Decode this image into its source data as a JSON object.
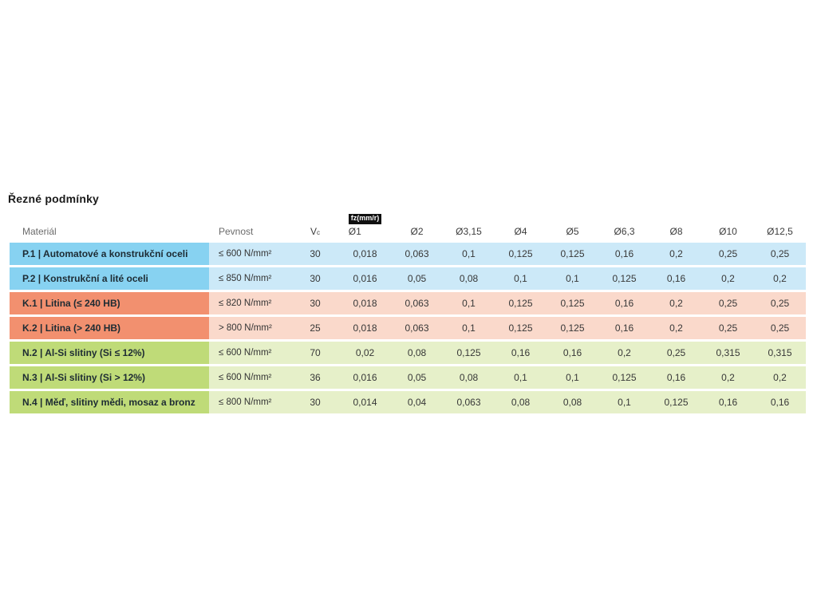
{
  "page": {
    "title": "Řezné podmínky"
  },
  "table": {
    "unit_badge": "fz(mm/r)",
    "columns": {
      "material": "Materiál",
      "strength": "Pevnost",
      "vc_main": "V",
      "vc_sub": "c",
      "diameters": [
        "Ø1",
        "Ø2",
        "Ø3,15",
        "Ø4",
        "Ø5",
        "Ø6,3",
        "Ø8",
        "Ø10",
        "Ø12,5"
      ]
    },
    "rows": [
      {
        "group": "P",
        "material": "P.1 | Automatové a konstrukční oceli",
        "strength": "≤ 600 N/mm²",
        "vc": "30",
        "values": [
          "0,018",
          "0,063",
          "0,1",
          "0,125",
          "0,125",
          "0,16",
          "0,2",
          "0,25",
          "0,25"
        ]
      },
      {
        "group": "P",
        "material": "P.2 | Konstrukční a lité oceli",
        "strength": "≤ 850 N/mm²",
        "vc": "30",
        "values": [
          "0,016",
          "0,05",
          "0,08",
          "0,1",
          "0,1",
          "0,125",
          "0,16",
          "0,2",
          "0,2"
        ]
      },
      {
        "group": "K",
        "material": "K.1 | Litina (≤ 240 HB)",
        "strength": "≤ 820 N/mm²",
        "vc": "30",
        "values": [
          "0,018",
          "0,063",
          "0,1",
          "0,125",
          "0,125",
          "0,16",
          "0,2",
          "0,25",
          "0,25"
        ]
      },
      {
        "group": "K",
        "material": "K.2 | Litina (> 240 HB)",
        "strength": "> 800 N/mm²",
        "vc": "25",
        "values": [
          "0,018",
          "0,063",
          "0,1",
          "0,125",
          "0,125",
          "0,16",
          "0,2",
          "0,25",
          "0,25"
        ]
      },
      {
        "group": "N",
        "material": "N.2 | Al-Si slitiny (Si ≤ 12%)",
        "strength": "≤ 600 N/mm²",
        "vc": "70",
        "values": [
          "0,02",
          "0,08",
          "0,125",
          "0,16",
          "0,16",
          "0,2",
          "0,25",
          "0,315",
          "0,315"
        ]
      },
      {
        "group": "N",
        "material": "N.3 | Al-Si slitiny (Si > 12%)",
        "strength": "≤ 600 N/mm²",
        "vc": "36",
        "values": [
          "0,016",
          "0,05",
          "0,08",
          "0,1",
          "0,1",
          "0,125",
          "0,16",
          "0,2",
          "0,2"
        ]
      },
      {
        "group": "N",
        "material": "N.4 | Měď, slitiny mědi, mosaz a bronz",
        "strength": "≤ 800 N/mm²",
        "vc": "30",
        "values": [
          "0,014",
          "0,04",
          "0,063",
          "0,08",
          "0,08",
          "0,1",
          "0,125",
          "0,16",
          "0,16"
        ]
      }
    ]
  },
  "colors": {
    "P": {
      "label": "#87d2f1",
      "cell": "#cce9f8"
    },
    "K": {
      "label": "#f2906f",
      "cell": "#fad9cb"
    },
    "N": {
      "label": "#bfdb78",
      "cell": "#e6f0c9"
    },
    "badge_bg": "#101010",
    "badge_text": "#ffffff"
  }
}
